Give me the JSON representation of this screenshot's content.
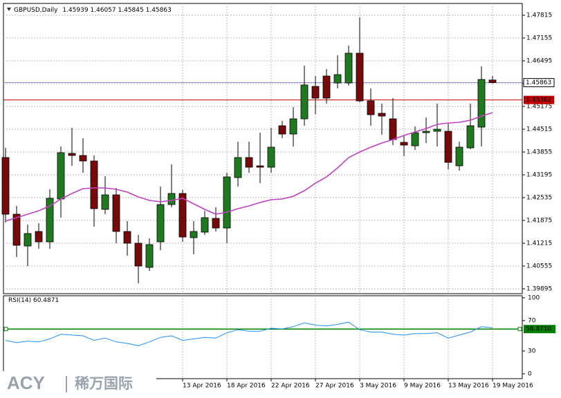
{
  "chart_data": {
    "type": "candlestick",
    "title": "GBPUSD,Daily",
    "categories": [
      null,
      null,
      null,
      null,
      null,
      null,
      null,
      null,
      null,
      null,
      null,
      null,
      null,
      null,
      null,
      null,
      "13 Apr 2016",
      null,
      null,
      null,
      "18 Apr 2016",
      null,
      null,
      null,
      "22 Apr 2016",
      null,
      null,
      null,
      "27 Apr 2016",
      null,
      null,
      null,
      "3 May 2016",
      null,
      null,
      null,
      "9 May 2016",
      null,
      null,
      null,
      "13 May 2016",
      null,
      null,
      null,
      "19 May 2016"
    ],
    "open": [
      1.43695,
      1.42055,
      1.41135,
      1.41555,
      1.41255,
      1.42495,
      1.43815,
      1.43755,
      1.43595,
      1.42195,
      1.42615,
      1.41555,
      1.41215,
      1.40515,
      1.41255,
      1.42335,
      1.42655,
      1.41375,
      1.41535,
      1.41935,
      1.41655,
      1.43115,
      1.43695,
      1.43455,
      1.43415,
      1.44615,
      1.44375,
      1.44815,
      1.45755,
      1.46055,
      1.45855,
      1.45855,
      1.46715,
      1.45335,
      1.44975,
      1.44815,
      1.44135,
      1.44035,
      1.44415,
      1.44455,
      1.44455,
      1.43455,
      1.43975,
      1.44575,
      1.45939
    ],
    "high": [
      1.43975,
      1.42295,
      1.41755,
      1.41795,
      1.42775,
      1.44015,
      1.44555,
      1.44255,
      1.43755,
      1.43155,
      1.42815,
      1.41855,
      1.41455,
      1.41355,
      1.42855,
      1.43495,
      1.42755,
      1.41855,
      1.42155,
      1.42255,
      1.43255,
      1.44155,
      1.44155,
      1.44415,
      1.44555,
      1.44755,
      1.45155,
      1.46355,
      1.46055,
      1.46255,
      1.46655,
      1.46935,
      1.47755,
      1.45695,
      1.45255,
      1.45415,
      1.44335,
      1.44595,
      1.44855,
      1.45255,
      1.44695,
      1.44155,
      1.45255,
      1.46335,
      1.46057
    ],
    "low": [
      1.41815,
      1.40815,
      1.40555,
      1.41055,
      1.41055,
      1.41955,
      1.43455,
      1.43255,
      1.41695,
      1.42055,
      1.41215,
      1.40855,
      1.40055,
      1.40415,
      1.41015,
      1.42255,
      1.41255,
      1.40895,
      1.41455,
      1.41555,
      1.41215,
      1.42855,
      1.43255,
      1.42955,
      1.43255,
      1.44255,
      1.44015,
      1.44615,
      1.44955,
      1.45255,
      1.45695,
      1.45775,
      1.45295,
      1.44615,
      1.44355,
      1.44055,
      1.43735,
      1.43915,
      1.44115,
      1.44015,
      1.43355,
      1.43315,
      1.43935,
      1.44015,
      1.45845
    ],
    "close": [
      1.42055,
      1.41155,
      1.41495,
      1.41255,
      1.42515,
      1.43835,
      1.43755,
      1.43595,
      1.42215,
      1.42615,
      1.41555,
      1.41215,
      1.40555,
      1.41175,
      1.42335,
      1.42655,
      1.41395,
      1.41555,
      1.41955,
      1.41655,
      1.43135,
      1.43695,
      1.43415,
      1.43415,
      1.43995,
      1.44375,
      1.44815,
      1.45795,
      1.45415,
      1.45415,
      1.46095,
      1.46715,
      1.45335,
      1.44935,
      1.44895,
      1.44215,
      1.44055,
      1.44415,
      1.44455,
      1.44515,
      1.43555,
      1.43995,
      1.44615,
      1.45955,
      1.45863
    ],
    "up_color": "#1f7a1f",
    "down_color": "#7a0a0a",
    "ma": {
      "color": "#c13fc1",
      "values": [
        1.41855,
        1.41955,
        1.42055,
        1.42155,
        1.42295,
        1.42495,
        1.42655,
        1.42795,
        1.42815,
        1.42815,
        1.42775,
        1.42695,
        1.42555,
        1.42455,
        1.42415,
        1.42455,
        1.42515,
        1.42355,
        1.42195,
        1.42055,
        1.42115,
        1.42215,
        1.42295,
        1.42395,
        1.42475,
        1.42495,
        1.42575,
        1.42735,
        1.42955,
        1.43135,
        1.43395,
        1.43695,
        1.43855,
        1.43995,
        1.44115,
        1.44215,
        1.44335,
        1.44435,
        1.44535,
        1.44655,
        1.44695,
        1.44715,
        1.44775,
        1.44895,
        1.44995
      ]
    },
    "ylim": [
      1.39755,
      1.48155
    ],
    "yticks": [
      1.47815,
      1.47155,
      1.46495,
      1.45835,
      1.45175,
      1.44515,
      1.43855,
      1.43195,
      1.42535,
      1.41875,
      1.41215,
      1.40555,
      1.39895
    ],
    "grid": true,
    "price_lines": [
      {
        "value": 1.45362,
        "color": "#c00000"
      }
    ],
    "bid_line_color": "#6666cc",
    "rsi": {
      "label": "RSI(14)",
      "color": "#1e90ff",
      "ylim": [
        0,
        100
      ],
      "yticks": [
        100,
        70,
        30,
        0
      ],
      "values": [
        44,
        41,
        43,
        42,
        46,
        52,
        51,
        50,
        44,
        47,
        42,
        40,
        37,
        42,
        48,
        50,
        44,
        46,
        48,
        47,
        54,
        58,
        56,
        56,
        60,
        59,
        62,
        67,
        64,
        63,
        65,
        68,
        58,
        55,
        55,
        52,
        51,
        53,
        53,
        54,
        47,
        51,
        55,
        62,
        60.4871
      ],
      "level": {
        "value": 58.871,
        "label": "58.8710"
      },
      "level_color": "#008000"
    },
    "logo": {
      "brand": "ACY",
      "name": "稀万国际"
    }
  }
}
